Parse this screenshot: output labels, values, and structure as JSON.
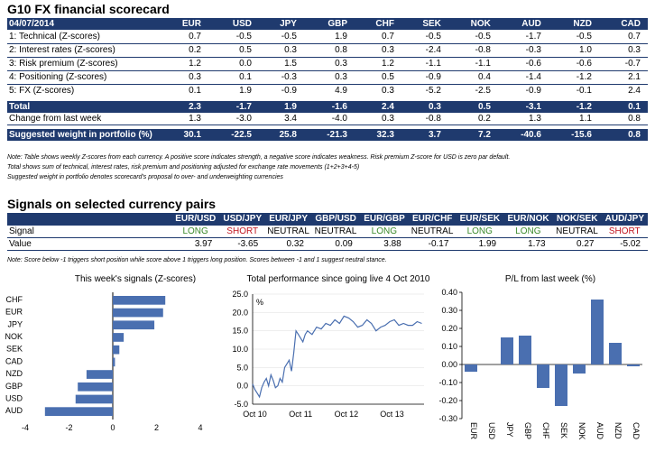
{
  "title": "G10 FX financial scorecard",
  "scorecard": {
    "date": "04/07/2014",
    "currencies": [
      "EUR",
      "USD",
      "JPY",
      "GBP",
      "CHF",
      "SEK",
      "NOK",
      "AUD",
      "NZD",
      "CAD"
    ],
    "rows": [
      {
        "label": "1: Technical (Z-scores)",
        "values": [
          "0.7",
          "-0.5",
          "-0.5",
          "1.9",
          "0.7",
          "-0.5",
          "-0.5",
          "-1.7",
          "-0.5",
          "0.7"
        ]
      },
      {
        "label": "2: Interest rates (Z-scores)",
        "values": [
          "0.2",
          "0.5",
          "0.3",
          "0.8",
          "0.3",
          "-2.4",
          "-0.8",
          "-0.3",
          "1.0",
          "0.3"
        ]
      },
      {
        "label": "3: Risk premium (Z-scores)",
        "values": [
          "1.2",
          "0.0",
          "1.5",
          "0.3",
          "1.2",
          "-1.1",
          "-1.1",
          "-0.6",
          "-0.6",
          "-0.7"
        ]
      },
      {
        "label": "4: Positioning (Z-scores)",
        "values": [
          "0.3",
          "0.1",
          "-0.3",
          "0.3",
          "0.5",
          "-0.9",
          "0.4",
          "-1.4",
          "-1.2",
          "2.1"
        ]
      },
      {
        "label": "5: FX (Z-scores)",
        "values": [
          "0.1",
          "1.9",
          "-0.9",
          "4.9",
          "0.3",
          "-5.2",
          "-2.5",
          "-0.9",
          "-0.1",
          "2.4"
        ]
      }
    ],
    "total": {
      "label": "Total",
      "values": [
        "2.3",
        "-1.7",
        "1.9",
        "-1.6",
        "2.4",
        "0.3",
        "0.5",
        "-3.1",
        "-1.2",
        "0.1"
      ]
    },
    "change": {
      "label": "Change from last week",
      "values": [
        "1.3",
        "-3.0",
        "3.4",
        "-4.0",
        "0.3",
        "-0.8",
        "0.2",
        "1.3",
        "1.1",
        "0.8"
      ]
    },
    "weight": {
      "label": "Suggested weight in portfolio (%)",
      "values": [
        "30.1",
        "-22.5",
        "25.8",
        "-21.3",
        "32.3",
        "3.7",
        "7.2",
        "-40.6",
        "-15.6",
        "0.8"
      ]
    },
    "notes": [
      "Note: Table shows weekly Z-scores from each currency. A positive score indicates strength, a negative score indicates weakness. Risk premium Z-score for USD is zero par default.",
      "Total shows sum of technical, interest rates, risk premium and positioning adjusted for exchange rate movements (1+2+3+4-5)",
      "Suggested weight in portfolio denotes scorecard's proposal to over- and underweighting currencies"
    ]
  },
  "signals": {
    "title": "Signals on selected currency pairs",
    "pairs": [
      "EUR/USD",
      "USD/JPY",
      "EUR/JPY",
      "GBP/USD",
      "EUR/GBP",
      "EUR/CHF",
      "EUR/SEK",
      "EUR/NOK",
      "NOK/SEK",
      "AUD/JPY"
    ],
    "signal_label": "Signal",
    "value_label": "Value",
    "signal": [
      "LONG",
      "SHORT",
      "NEUTRAL",
      "NEUTRAL",
      "LONG",
      "NEUTRAL",
      "LONG",
      "LONG",
      "NEUTRAL",
      "SHORT"
    ],
    "value": [
      "3.97",
      "-3.65",
      "0.32",
      "0.09",
      "3.88",
      "-0.17",
      "1.99",
      "1.73",
      "0.27",
      "-5.02"
    ],
    "note": "Note: Score below -1 triggers short position while score above 1 triggers long position. Scores between -1 and 1 suggest neutral stance."
  },
  "colors": {
    "navy": "#1f3a6e",
    "bar": "#4a6fb0",
    "long": "#3a8a2a",
    "short": "#c0151f",
    "line": "#4a6fb0"
  },
  "chart_data": [
    {
      "type": "bar",
      "title": "This week's signals (Z-scores)",
      "orientation": "horizontal",
      "categories": [
        "CHF",
        "EUR",
        "JPY",
        "NOK",
        "SEK",
        "CAD",
        "NZD",
        "GBP",
        "USD",
        "AUD"
      ],
      "values": [
        2.4,
        2.3,
        1.9,
        0.5,
        0.3,
        0.1,
        -1.2,
        -1.6,
        -1.7,
        -3.1
      ],
      "xlim": [
        -4,
        4
      ],
      "xticks": [
        "-4",
        "-2",
        "0",
        "2",
        "4"
      ]
    },
    {
      "type": "line",
      "title": "Total performance since going live 4 Oct 2010",
      "ylabel": "%",
      "ylim": [
        -5,
        25
      ],
      "yticks": [
        "25.0",
        "20.0",
        "15.0",
        "10.0",
        "5.0",
        "0.0",
        "-5.0"
      ],
      "xticks": [
        "Oct 10",
        "Oct 11",
        "Oct 12",
        "Oct 13"
      ],
      "x_years": [
        0.0,
        0.05,
        0.1,
        0.15,
        0.2,
        0.25,
        0.3,
        0.35,
        0.4,
        0.45,
        0.5,
        0.55,
        0.6,
        0.65,
        0.7,
        0.75,
        0.8,
        0.85,
        0.9,
        0.95,
        1.0,
        1.05,
        1.1,
        1.15,
        1.2,
        1.3,
        1.4,
        1.5,
        1.6,
        1.7,
        1.8,
        1.9,
        2.0,
        2.1,
        2.2,
        2.3,
        2.4,
        2.5,
        2.6,
        2.7,
        2.8,
        2.9,
        3.0,
        3.1,
        3.2,
        3.3,
        3.4,
        3.5,
        3.6,
        3.7
      ],
      "values": [
        0.5,
        -1,
        -2,
        -3,
        -0.5,
        1,
        2,
        0,
        3,
        1.5,
        -0.5,
        0,
        2,
        1,
        5,
        6,
        7,
        4,
        9,
        15,
        14,
        13,
        12,
        14,
        15,
        14,
        16,
        15.5,
        17,
        16.5,
        18,
        17,
        19,
        18.5,
        17.5,
        16,
        16.5,
        18,
        17,
        15,
        16,
        16.5,
        17.5,
        18,
        16.5,
        17,
        16.5,
        16.5,
        17.5,
        17
      ]
    },
    {
      "type": "bar",
      "title": "P/L from last week (%)",
      "categories": [
        "EUR",
        "USD",
        "JPY",
        "GBP",
        "CHF",
        "SEK",
        "NOK",
        "AUD",
        "NZD",
        "CAD"
      ],
      "values": [
        -0.04,
        0.0,
        0.15,
        0.16,
        -0.13,
        -0.23,
        -0.05,
        0.36,
        0.12,
        -0.01
      ],
      "ylim": [
        -0.3,
        0.4
      ],
      "yticks": [
        "0.40",
        "0.30",
        "0.20",
        "0.10",
        "0.00",
        "-0.10",
        "-0.20",
        "-0.30"
      ]
    }
  ]
}
